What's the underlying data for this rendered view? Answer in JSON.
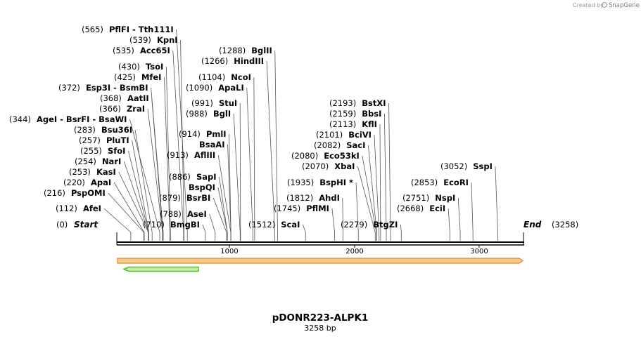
{
  "credit": {
    "text": "Created by",
    "brand": "SnapGene"
  },
  "map": {
    "title": "pDONR223-ALPK1",
    "length_label": "3258 bp",
    "length": 3258,
    "start": {
      "pos": "(0)",
      "name": "Start"
    },
    "end": {
      "pos": "(3258)",
      "name": "End"
    },
    "ticks": [
      "1000",
      "2000",
      "3000"
    ],
    "colors": {
      "feature_fill": "#f5c98e",
      "feature_stroke": "#e8891e",
      "green": "#4fc21d",
      "green_fill": "#c9ecb0"
    }
  },
  "sites": [
    {
      "pos": "(565)",
      "name": "PflFI  - Tth111I",
      "cut": 565
    },
    {
      "pos": "(539)",
      "name": "KpnI",
      "cut": 539
    },
    {
      "pos": "(535)",
      "name": "Acc65I",
      "cut": 535
    },
    {
      "pos": "(430)",
      "name": "TsoI",
      "cut": 430
    },
    {
      "pos": "(425)",
      "name": "MfeI",
      "cut": 425
    },
    {
      "pos": "(372)",
      "name": "Esp3I  - BsmBI",
      "cut": 372
    },
    {
      "pos": "(368)",
      "name": "AatII",
      "cut": 368
    },
    {
      "pos": "(366)",
      "name": "ZraI",
      "cut": 366
    },
    {
      "pos": "(344)",
      "name": "AgeI  - BsrFI  - BsaWI",
      "cut": 344
    },
    {
      "pos": "(283)",
      "name": "Bsu36I",
      "cut": 283
    },
    {
      "pos": "(257)",
      "name": "PluTI",
      "cut": 257
    },
    {
      "pos": "(255)",
      "name": "SfoI",
      "cut": 255
    },
    {
      "pos": "(254)",
      "name": "NarI",
      "cut": 254
    },
    {
      "pos": "(253)",
      "name": "KasI",
      "cut": 253
    },
    {
      "pos": "(220)",
      "name": "ApaI",
      "cut": 220
    },
    {
      "pos": "(216)",
      "name": "PspOMI",
      "cut": 216
    },
    {
      "pos": "(112)",
      "name": "AfeI",
      "cut": 112
    },
    {
      "pos": "(1288)",
      "name": "BglII",
      "cut": 1288
    },
    {
      "pos": "(1266)",
      "name": "HindIII",
      "cut": 1266
    },
    {
      "pos": "(1104)",
      "name": "NcoI",
      "cut": 1104
    },
    {
      "pos": "(1090)",
      "name": "ApaLI",
      "cut": 1090
    },
    {
      "pos": "(991)",
      "name": "StuI",
      "cut": 991
    },
    {
      "pos": "(988)",
      "name": "BglI",
      "cut": 988
    },
    {
      "pos": "(914)",
      "name": "PmlI",
      "cut": 914
    },
    {
      "pos": "",
      "name": "BsaAI",
      "cut": 914
    },
    {
      "pos": "(913)",
      "name": "AflIII",
      "cut": 913
    },
    {
      "pos": "(886)",
      "name": "SapI",
      "cut": 886
    },
    {
      "pos": "",
      "name": "BspQI",
      "cut": 886
    },
    {
      "pos": "(879)",
      "name": "BsrBI",
      "cut": 879
    },
    {
      "pos": "(788)",
      "name": "AseI",
      "cut": 788
    },
    {
      "pos": "(710)",
      "name": "BmgBI",
      "cut": 710
    },
    {
      "pos": "(1512)",
      "name": "ScaI",
      "cut": 1512
    },
    {
      "pos": "(1935)",
      "name": "BspHI *",
      "cut": 1935
    },
    {
      "pos": "(1812)",
      "name": "AhdI",
      "cut": 1812
    },
    {
      "pos": "(1745)",
      "name": "PflMI",
      "cut": 1745
    },
    {
      "pos": "(2193)",
      "name": "BstXI",
      "cut": 2193
    },
    {
      "pos": "(2159)",
      "name": "BbsI",
      "cut": 2159
    },
    {
      "pos": "(2113)",
      "name": "KflI",
      "cut": 2113
    },
    {
      "pos": "(2101)",
      "name": "BciVI",
      "cut": 2101
    },
    {
      "pos": "(2082)",
      "name": "SacI",
      "cut": 2082
    },
    {
      "pos": "(2080)",
      "name": "Eco53kI",
      "cut": 2080
    },
    {
      "pos": "(2070)",
      "name": "XbaI",
      "cut": 2070
    },
    {
      "pos": "(2279)",
      "name": "BtgZI",
      "cut": 2279
    },
    {
      "pos": "(3052)",
      "name": "SspI",
      "cut": 3052
    },
    {
      "pos": "(2853)",
      "name": "EcoRI",
      "cut": 2853
    },
    {
      "pos": "(2751)",
      "name": "NspI",
      "cut": 2751
    },
    {
      "pos": "(2668)",
      "name": "EciI",
      "cut": 2668
    }
  ]
}
